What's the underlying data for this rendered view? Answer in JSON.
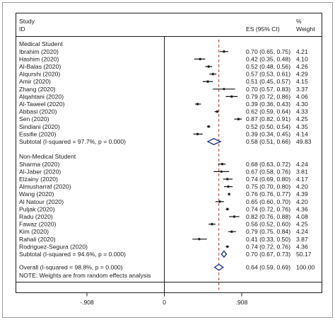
{
  "chart_data": {
    "type": "forest",
    "header": {
      "study_line1": "Study",
      "study_line2": "ID",
      "es_label": "ES (95% CI)",
      "weight_line1": "%",
      "weight_line2": "Weight"
    },
    "xlim": [
      -0.908,
      0.908
    ],
    "x_ticks": [
      {
        "value": -0.908,
        "label": "-.908"
      },
      {
        "value": 0,
        "label": "0"
      },
      {
        "value": 0.908,
        "label": ".908"
      }
    ],
    "overall_reference": 0.64,
    "groups": [
      {
        "name": "Medical Student",
        "studies": [
          {
            "study": "Ibrahim (2020)",
            "es": 0.7,
            "lo": 0.65,
            "hi": 0.75,
            "ci_text": "0.70 (0.65, 0.75)",
            "weight": "4.21"
          },
          {
            "study": "Hashim (2020)",
            "es": 0.42,
            "lo": 0.35,
            "hi": 0.48,
            "ci_text": "0.42 (0.35, 0.48)",
            "weight": "4.10"
          },
          {
            "study": "Al-Balas (2020)",
            "es": 0.52,
            "lo": 0.48,
            "hi": 0.56,
            "ci_text": "0.52 (0.48, 0.56)",
            "weight": "4.26"
          },
          {
            "study": "Alqurshi (2020)",
            "es": 0.57,
            "lo": 0.53,
            "hi": 0.61,
            "ci_text": "0.57 (0.53, 0.61)",
            "weight": "4.29"
          },
          {
            "study": "Amir (2020)",
            "es": 0.51,
            "lo": 0.45,
            "hi": 0.57,
            "ci_text": "0.51 (0.45, 0.57)",
            "weight": "4.15"
          },
          {
            "study": "Zhang (2020)",
            "es": 0.7,
            "lo": 0.57,
            "hi": 0.83,
            "ci_text": "0.70 (0.57, 0.83)",
            "weight": "3.37"
          },
          {
            "study": "Alqahtani (2020)",
            "es": 0.79,
            "lo": 0.72,
            "hi": 0.86,
            "ci_text": "0.79 (0.72, 0.86)",
            "weight": "4.06"
          },
          {
            "study": "Al-Taweel (2020)",
            "es": 0.39,
            "lo": 0.36,
            "hi": 0.43,
            "ci_text": "0.39 (0.36, 0.43)",
            "weight": "4.30"
          },
          {
            "study": "Abbasi (2020)",
            "es": 0.62,
            "lo": 0.59,
            "hi": 0.64,
            "ci_text": "0.62 (0.59, 0.64)",
            "weight": "4.33"
          },
          {
            "study": "Sen (2020)",
            "es": 0.87,
            "lo": 0.82,
            "hi": 0.91,
            "ci_text": "0.87 (0.82, 0.91)",
            "weight": "4.25"
          },
          {
            "study": "Sindiani (2020)",
            "es": 0.52,
            "lo": 0.5,
            "hi": 0.54,
            "ci_text": "0.52 (0.50, 0.54)",
            "weight": "4.35"
          },
          {
            "study": "Essifie (2020)",
            "es": 0.39,
            "lo": 0.34,
            "hi": 0.45,
            "ci_text": "0.39 (0.34, 0.45)",
            "weight": "4.14"
          }
        ],
        "subtotal": {
          "label": "Subtotal  (I-squared = 97.7%, p = 0.000)",
          "es": 0.58,
          "lo": 0.51,
          "hi": 0.66,
          "ci_text": "0.58 (0.51, 0.66)",
          "weight": "49.83"
        }
      },
      {
        "name": "Non-Medical Student",
        "studies": [
          {
            "study": "Sharma (2020)",
            "es": 0.68,
            "lo": 0.63,
            "hi": 0.72,
            "ci_text": "0.68 (0.63, 0.72)",
            "weight": "4.24"
          },
          {
            "study": "Al-Jaber (2020)",
            "es": 0.67,
            "lo": 0.58,
            "hi": 0.76,
            "ci_text": "0.67 (0.58, 0.76)",
            "weight": "3.81"
          },
          {
            "study": "Elzainy (2020)",
            "es": 0.74,
            "lo": 0.69,
            "hi": 0.8,
            "ci_text": "0.74 (0.69, 0.80)",
            "weight": "4.17"
          },
          {
            "study": "Almusharraf (2020)",
            "es": 0.75,
            "lo": 0.7,
            "hi": 0.8,
            "ci_text": "0.75 (0.70, 0.80)",
            "weight": "4.20"
          },
          {
            "study": "Wang (2020)",
            "es": 0.76,
            "lo": 0.76,
            "hi": 0.77,
            "ci_text": "0.76 (0.76, 0.77)",
            "weight": "4.39"
          },
          {
            "study": "Al Natour (2020)",
            "es": 0.65,
            "lo": 0.6,
            "hi": 0.7,
            "ci_text": "0.65 (0.60, 0.70)",
            "weight": "4.20"
          },
          {
            "study": "Puljak (2020)",
            "es": 0.74,
            "lo": 0.72,
            "hi": 0.76,
            "ci_text": "0.74 (0.72, 0.76)",
            "weight": "4.36"
          },
          {
            "study": "Radu (2020)",
            "es": 0.82,
            "lo": 0.76,
            "hi": 0.88,
            "ci_text": "0.82 (0.76, 0.88)",
            "weight": "4.08"
          },
          {
            "study": "Fawaz (2020)",
            "es": 0.56,
            "lo": 0.52,
            "hi": 0.6,
            "ci_text": "0.56 (0.52, 0.60)",
            "weight": "4.25"
          },
          {
            "study": "Kim (2020)",
            "es": 0.79,
            "lo": 0.75,
            "hi": 0.84,
            "ci_text": "0.79 (0.75, 0.84)",
            "weight": "4.24"
          },
          {
            "study": "Rahali (2020)",
            "es": 0.41,
            "lo": 0.33,
            "hi": 0.5,
            "ci_text": "0.41 (0.33, 0.50)",
            "weight": "3.87"
          },
          {
            "study": "Rodriguez-Segura (2020)",
            "es": 0.74,
            "lo": 0.72,
            "hi": 0.76,
            "ci_text": "0.74 (0.72, 0.76)",
            "weight": "4.36"
          }
        ],
        "subtotal": {
          "label": "Subtotal  (I-squared = 94.6%, p = 0.000)",
          "es": 0.7,
          "lo": 0.67,
          "hi": 0.73,
          "ci_text": "0.70 (0.67, 0.73)",
          "weight": "50.17"
        }
      }
    ],
    "overall": {
      "label": "Overall  (I-squared = 98.8%, p = 0.000)",
      "es": 0.64,
      "lo": 0.59,
      "hi": 0.69,
      "ci_text": "0.64 (0.59, 0.69)",
      "weight": "100.00"
    },
    "note": "NOTE: Weights are from random effects analysis",
    "colors": {
      "ref_line": "#c0392b",
      "diamond": "#1f3a8a",
      "marker": "#111111",
      "axis": "#222222",
      "frame": "#9a9a9a"
    }
  }
}
